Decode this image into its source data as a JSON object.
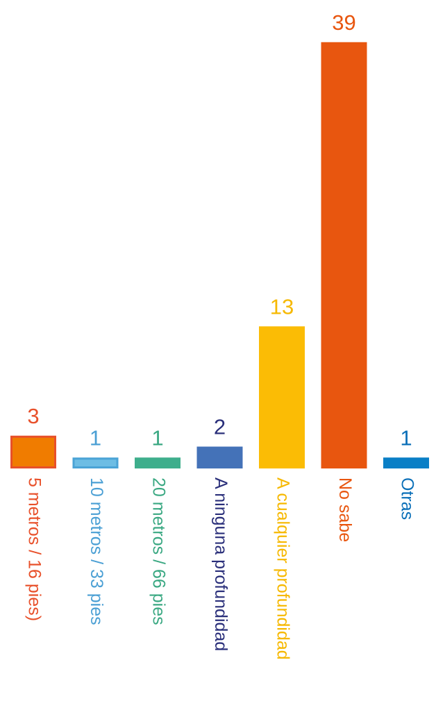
{
  "chart_data": {
    "type": "bar",
    "categories": [
      "5 metros / 16 pies)",
      "10 metros / 33 pies",
      "20 metros / 66 pies",
      "A ninguna profundidad",
      "A cualquier profundidad",
      "No sabe",
      "Otras"
    ],
    "values": [
      3,
      1,
      1,
      2,
      13,
      39,
      1
    ],
    "colors": [
      "#f07c00",
      "#6dbde4",
      "#3eae8c",
      "#4472b8",
      "#fbbc05",
      "#e8560f",
      "#0a7fc6"
    ],
    "border_colors": [
      "#e8502a",
      "#4aa3d6",
      "#3eae8c",
      "#4472b8",
      "#fbbc05",
      "#e8560f",
      "#0a7fc6"
    ],
    "label_colors": [
      "#e8502a",
      "#4a9fd4",
      "#3aa882",
      "#2a2f7a",
      "#f6b800",
      "#e8560f",
      "#0a6fb8"
    ]
  }
}
